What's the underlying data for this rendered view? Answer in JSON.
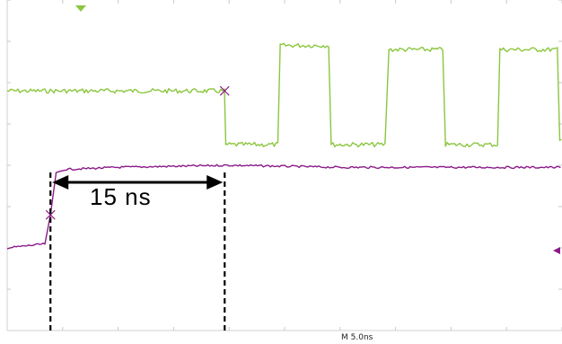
{
  "chart_data": {
    "type": "line",
    "title": "",
    "xlabel": "",
    "ylabel": "",
    "grid": true,
    "timebase_label": "M 5.0ns",
    "x_unit": "ns",
    "xlim": [
      0,
      50
    ],
    "ylim": [
      -4,
      4
    ],
    "series": [
      {
        "color": "#8cc63f",
        "points": [
          [
            0,
            1.8
          ],
          [
            19.6,
            1.8
          ],
          [
            19.7,
            0.5
          ],
          [
            24.4,
            0.5
          ],
          [
            24.6,
            2.9
          ],
          [
            29.0,
            2.9
          ],
          [
            29.2,
            0.5
          ],
          [
            34.2,
            0.5
          ],
          [
            34.4,
            2.8
          ],
          [
            39.3,
            2.8
          ],
          [
            39.5,
            0.5
          ],
          [
            44.2,
            0.5
          ],
          [
            44.4,
            2.8
          ],
          [
            49.6,
            2.8
          ],
          [
            49.8,
            0.6
          ],
          [
            50,
            0.6
          ]
        ]
      },
      {
        "color": "#8b1a89",
        "points": [
          [
            0,
            -2.0
          ],
          [
            3.5,
            -1.9
          ],
          [
            3.9,
            -1.2
          ],
          [
            4.4,
            -0.2
          ],
          [
            5.2,
            -0.1
          ],
          [
            10,
            -0.05
          ],
          [
            20,
            0.0
          ],
          [
            30,
            -0.05
          ],
          [
            40,
            -0.05
          ],
          [
            50,
            -0.05
          ]
        ]
      }
    ],
    "annotations": [
      {
        "type": "double-arrow",
        "x1": 3.9,
        "x2": 19.6,
        "label": "15 ns"
      },
      {
        "type": "vline",
        "x": 3.9,
        "style": "dashed"
      },
      {
        "type": "vline",
        "x": 19.6,
        "style": "dashed"
      }
    ]
  }
}
